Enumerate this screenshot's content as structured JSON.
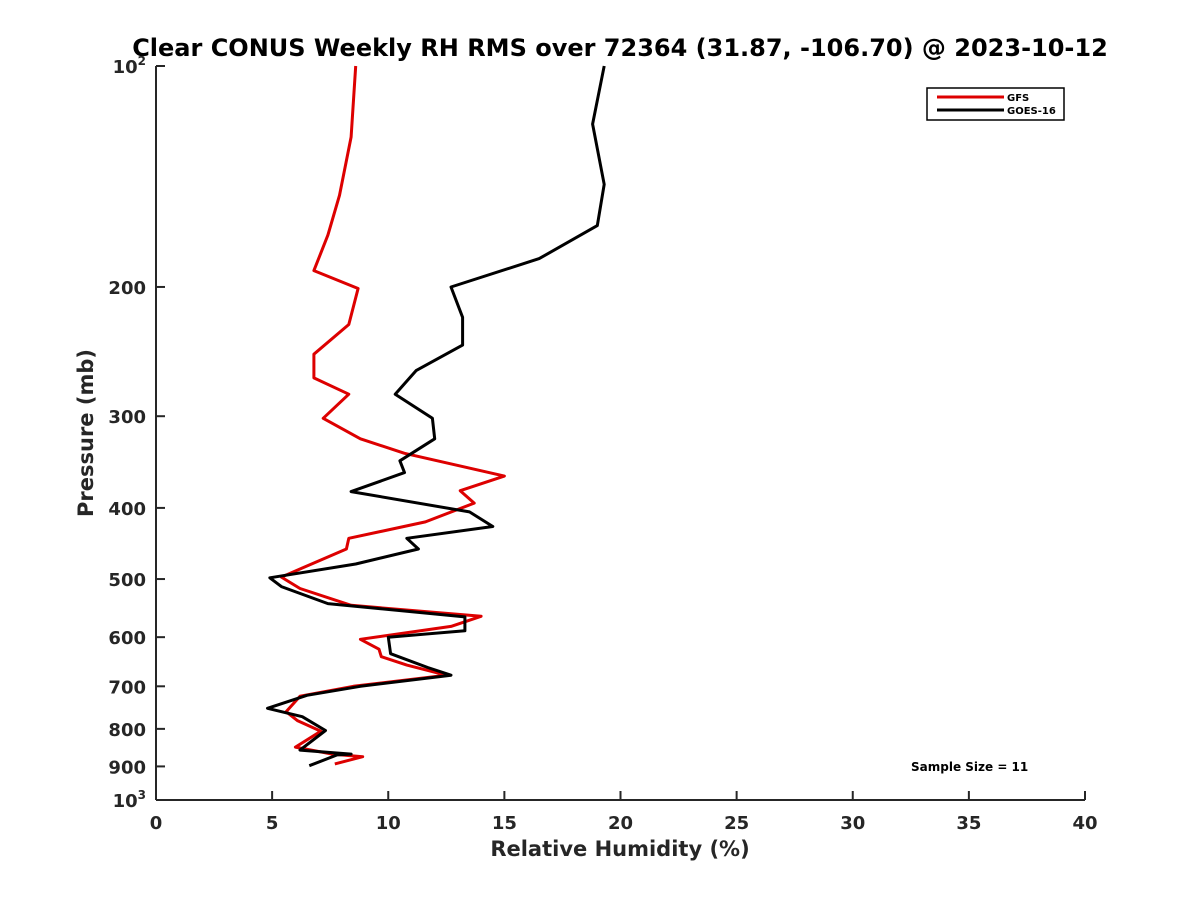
{
  "chart_data": {
    "type": "line",
    "title": "Clear CONUS Weekly RH RMS over 72364 (31.87, -106.70) @ 2023-10-12",
    "xlabel": "Relative Humidity (%)",
    "ylabel": "Pressure (mb)",
    "xlim": [
      0,
      40
    ],
    "ylim": [
      100,
      1000
    ],
    "y_scale": "log",
    "y_reversed": true,
    "x_ticks": [
      0,
      5,
      10,
      15,
      20,
      25,
      30,
      35,
      40
    ],
    "x_tick_labels": [
      "0",
      "5",
      "10",
      "15",
      "20",
      "25",
      "30",
      "35",
      "40"
    ],
    "y_ticks": [
      {
        "value": 100,
        "base": "10",
        "exp": "2"
      },
      {
        "value": 200,
        "label": "200"
      },
      {
        "value": 300,
        "label": "300"
      },
      {
        "value": 400,
        "label": "400"
      },
      {
        "value": 500,
        "label": "500"
      },
      {
        "value": 600,
        "label": "600"
      },
      {
        "value": 700,
        "label": "700"
      },
      {
        "value": 800,
        "label": "800"
      },
      {
        "value": 900,
        "label": "900"
      },
      {
        "value": 1000,
        "base": "10",
        "exp": "3"
      }
    ],
    "grid": false,
    "legend_position": "top-right",
    "annotation": "Sample Size = 11",
    "series": [
      {
        "name": "GFS",
        "color": "#dd0000",
        "points": [
          [
            8.6,
            100
          ],
          [
            8.4,
            125
          ],
          [
            7.9,
            150
          ],
          [
            7.4,
            170
          ],
          [
            6.8,
            190
          ],
          [
            8.7,
            201
          ],
          [
            8.3,
            225
          ],
          [
            6.8,
            247
          ],
          [
            6.8,
            266
          ],
          [
            8.3,
            280
          ],
          [
            7.2,
            302
          ],
          [
            8.8,
            322
          ],
          [
            10.7,
            337
          ],
          [
            15.0,
            362
          ],
          [
            13.1,
            379
          ],
          [
            13.7,
            394
          ],
          [
            11.6,
            418
          ],
          [
            8.3,
            440
          ],
          [
            8.2,
            455
          ],
          [
            6.3,
            483
          ],
          [
            5.4,
            497
          ],
          [
            6.2,
            515
          ],
          [
            8.4,
            543
          ],
          [
            14.0,
            562
          ],
          [
            12.7,
            580
          ],
          [
            8.8,
            604
          ],
          [
            9.6,
            623
          ],
          [
            9.7,
            638
          ],
          [
            10.8,
            655
          ],
          [
            12.5,
            676
          ],
          [
            8.5,
            700
          ],
          [
            6.2,
            722
          ],
          [
            5.6,
            758
          ],
          [
            6.1,
            780
          ],
          [
            7.1,
            806
          ],
          [
            6.0,
            847
          ],
          [
            7.6,
            866
          ],
          [
            8.9,
            873
          ],
          [
            7.7,
            893
          ]
        ]
      },
      {
        "name": "GOES-16",
        "color": "#000000",
        "points": [
          [
            19.3,
            100
          ],
          [
            18.8,
            120
          ],
          [
            19.3,
            145
          ],
          [
            19.0,
            165
          ],
          [
            16.5,
            183
          ],
          [
            12.7,
            200
          ],
          [
            13.2,
            220
          ],
          [
            13.2,
            240
          ],
          [
            11.2,
            260
          ],
          [
            10.3,
            280
          ],
          [
            11.9,
            302
          ],
          [
            12.0,
            322
          ],
          [
            10.5,
            345
          ],
          [
            10.7,
            358
          ],
          [
            8.4,
            380
          ],
          [
            13.5,
            405
          ],
          [
            14.5,
            424
          ],
          [
            10.8,
            440
          ],
          [
            11.3,
            455
          ],
          [
            8.6,
            477
          ],
          [
            4.9,
            498
          ],
          [
            5.4,
            512
          ],
          [
            7.4,
            540
          ],
          [
            13.3,
            563
          ],
          [
            13.3,
            588
          ],
          [
            10.0,
            600
          ],
          [
            10.1,
            632
          ],
          [
            11.7,
            660
          ],
          [
            12.7,
            676
          ],
          [
            8.8,
            700
          ],
          [
            6.5,
            720
          ],
          [
            4.8,
            750
          ],
          [
            6.3,
            770
          ],
          [
            7.3,
            804
          ],
          [
            6.2,
            855
          ],
          [
            8.4,
            866
          ],
          [
            7.8,
            868
          ],
          [
            6.6,
            898
          ]
        ]
      }
    ]
  }
}
